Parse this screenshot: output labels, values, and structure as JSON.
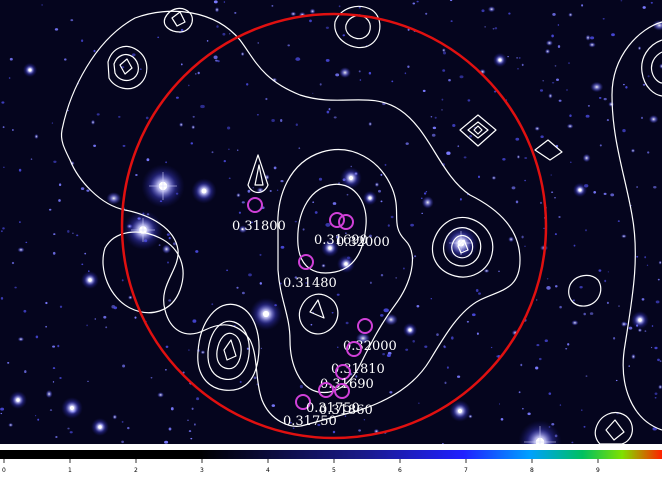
{
  "colors": {
    "background": "#05051e",
    "contour": "#ffffff",
    "aperture": "#e01010",
    "member_marker": "#d040d8",
    "label": "#ffffff"
  },
  "galaxies": [
    {
      "id": "g1",
      "label": "0.31800"
    },
    {
      "id": "g2",
      "label": "0.31690"
    },
    {
      "id": "g3",
      "label": "0.32000"
    },
    {
      "id": "g4",
      "label": "0.31480"
    },
    {
      "id": "g5",
      "label": "0.32000"
    },
    {
      "id": "g6",
      "label": "0.31810"
    },
    {
      "id": "g7",
      "label": "0.31690"
    },
    {
      "id": "g8",
      "label": "0.31860"
    },
    {
      "id": "g9",
      "label": "0.31750"
    },
    {
      "id": "g10",
      "label": "0.31750"
    }
  ],
  "colorbar": {
    "tick_labels": [
      "0",
      "1",
      "2",
      "3",
      "4",
      "5",
      "6",
      "7",
      "8",
      "9"
    ]
  }
}
